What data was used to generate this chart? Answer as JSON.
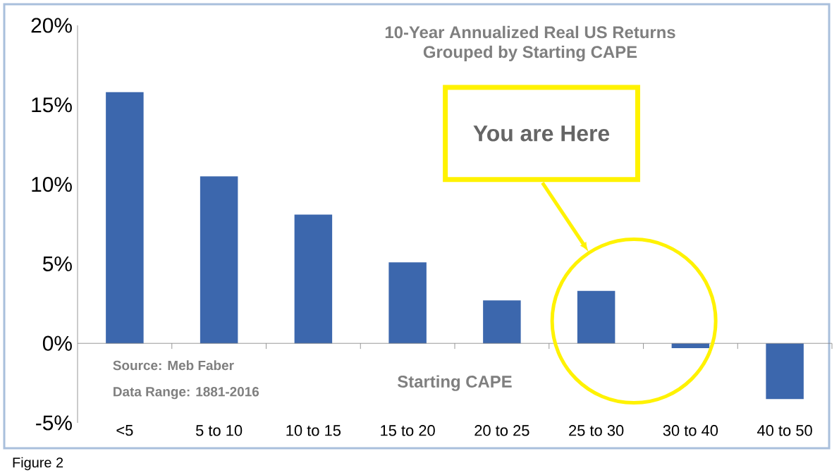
{
  "chart_data": {
    "type": "bar",
    "title": "10-Year Annualized Real US Returns\nGrouped by Starting CAPE",
    "xlabel": "Starting CAPE",
    "categories": [
      "<5",
      "5 to 10",
      "10 to 15",
      "15 to 20",
      "20 to 25",
      "25 to 30",
      "30 to 40",
      "40 to 50"
    ],
    "values": [
      15.8,
      10.5,
      8.1,
      5.1,
      2.7,
      3.3,
      -0.3,
      -3.5
    ],
    "color": "#3c67ad",
    "ylim": [
      -5,
      20
    ],
    "yticks": [
      {
        "value": -5,
        "label": "-5%"
      },
      {
        "value": 0,
        "label": "0%"
      },
      {
        "value": 5,
        "label": "5%"
      },
      {
        "value": 10,
        "label": "10%"
      },
      {
        "value": 15,
        "label": "15%"
      },
      {
        "value": 20,
        "label": "20%"
      }
    ],
    "annotations": [
      "Source: Meb Faber",
      "Data Range: 1881-2016",
      "You are Here",
      "Figure 2"
    ]
  }
}
